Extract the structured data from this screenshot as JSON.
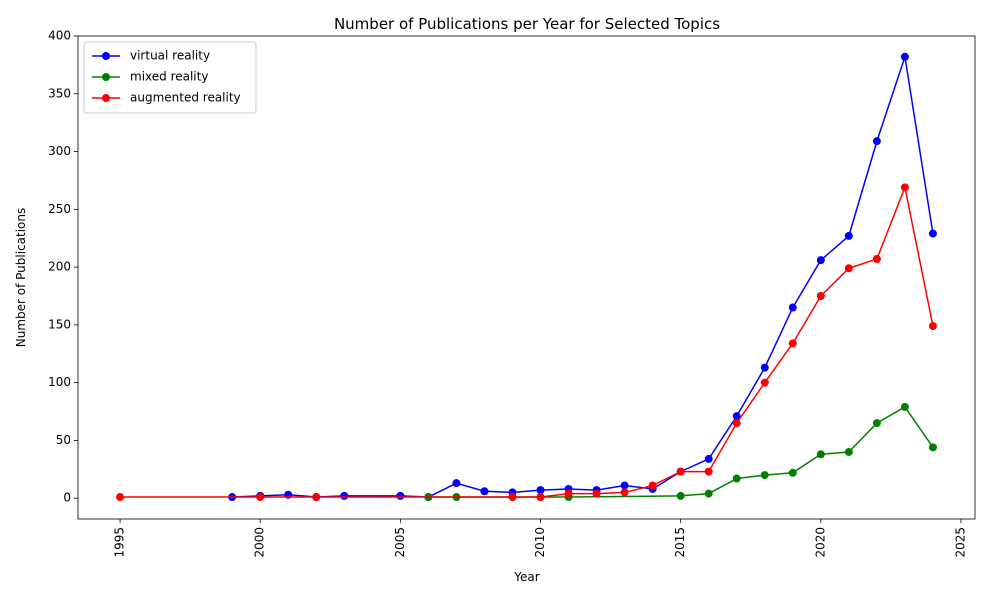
{
  "chart_data": {
    "type": "line",
    "title": "Number of Publications per Year for Selected Topics",
    "xlabel": "Year",
    "ylabel": "Number of Publications",
    "xlim": [
      1993.5,
      2025.5
    ],
    "ylim": [
      -18,
      400
    ],
    "xticks": [
      1995,
      2000,
      2005,
      2010,
      2015,
      2020,
      2025
    ],
    "yticks": [
      0,
      50,
      100,
      150,
      200,
      250,
      300,
      350,
      400
    ],
    "grid": false,
    "legend_position": "top-left",
    "series": [
      {
        "name": "virtual reality",
        "color": "#0000ff",
        "points": [
          [
            1999,
            1
          ],
          [
            2000,
            2
          ],
          [
            2001,
            3
          ],
          [
            2002,
            1
          ],
          [
            2003,
            2
          ],
          [
            2005,
            2
          ],
          [
            2006,
            1
          ],
          [
            2007,
            13
          ],
          [
            2008,
            6
          ],
          [
            2009,
            5
          ],
          [
            2010,
            7
          ],
          [
            2011,
            8
          ],
          [
            2012,
            7
          ],
          [
            2013,
            11
          ],
          [
            2014,
            8
          ],
          [
            2015,
            23
          ],
          [
            2016,
            34
          ],
          [
            2017,
            71
          ],
          [
            2018,
            113
          ],
          [
            2019,
            165
          ],
          [
            2020,
            206
          ],
          [
            2021,
            227
          ],
          [
            2022,
            309
          ],
          [
            2023,
            382
          ],
          [
            2024,
            229
          ]
        ]
      },
      {
        "name": "mixed reality",
        "color": "#008000",
        "points": [
          [
            2006,
            1
          ],
          [
            2007,
            1
          ],
          [
            2009,
            1
          ],
          [
            2010,
            1
          ],
          [
            2011,
            1
          ],
          [
            2015,
            2
          ],
          [
            2016,
            4
          ],
          [
            2017,
            17
          ],
          [
            2018,
            20
          ],
          [
            2019,
            22
          ],
          [
            2020,
            38
          ],
          [
            2021,
            40
          ],
          [
            2022,
            65
          ],
          [
            2023,
            79
          ],
          [
            2024,
            44
          ]
        ]
      },
      {
        "name": "augmented reality",
        "color": "#ff0000",
        "points": [
          [
            1995,
            1
          ],
          [
            2000,
            1
          ],
          [
            2002,
            1
          ],
          [
            2009,
            1
          ],
          [
            2010,
            1
          ],
          [
            2011,
            4
          ],
          [
            2012,
            4
          ],
          [
            2013,
            5
          ],
          [
            2014,
            11
          ],
          [
            2015,
            23
          ],
          [
            2016,
            23
          ],
          [
            2017,
            65
          ],
          [
            2018,
            100
          ],
          [
            2019,
            134
          ],
          [
            2020,
            175
          ],
          [
            2021,
            199
          ],
          [
            2022,
            207
          ],
          [
            2023,
            269
          ],
          [
            2024,
            149
          ]
        ]
      }
    ]
  }
}
